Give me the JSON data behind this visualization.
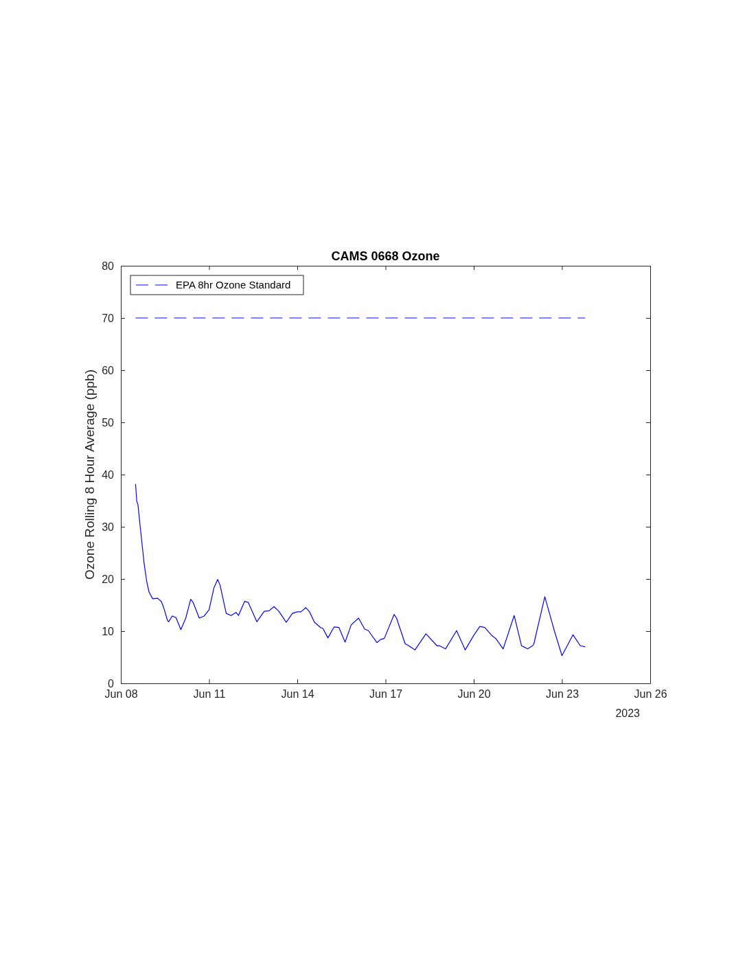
{
  "chart_data": {
    "type": "line",
    "title": "CAMS 0668 Ozone",
    "ylabel": "Ozone Rolling 8 Hour Average (ppb)",
    "annotations": [
      "2023"
    ],
    "xlim": [
      "2023-06-08",
      "2023-06-26"
    ],
    "xticks": [
      {
        "value": "2023-06-08",
        "label": "Jun 08"
      },
      {
        "value": "2023-06-11",
        "label": "Jun 11"
      },
      {
        "value": "2023-06-14",
        "label": "Jun 14"
      },
      {
        "value": "2023-06-17",
        "label": "Jun 17"
      },
      {
        "value": "2023-06-20",
        "label": "Jun 20"
      },
      {
        "value": "2023-06-23",
        "label": "Jun 23"
      },
      {
        "value": "2023-06-26",
        "label": "Jun 26"
      }
    ],
    "ylim": [
      0,
      80
    ],
    "yticks": [
      0,
      10,
      20,
      30,
      40,
      50,
      60,
      70,
      80
    ],
    "grid": false,
    "legend": "top left",
    "series": [
      {
        "name": "EPA 8hr Ozone Standard",
        "color": "#0000ff",
        "line_style": "dashed",
        "x": [
          "2023-06-08T12:00",
          "2023-06-23T19:00"
        ],
        "values": [
          70,
          70
        ]
      },
      {
        "color": "#0000ff",
        "x": [
          "2023-06-08T12:00",
          "2023-06-08T13:00",
          "2023-06-08T14:00",
          "2023-06-08T16:00",
          "2023-06-08T19:00",
          "2023-06-08T21:00",
          "2023-06-08T23:00",
          "2023-06-09T02:00",
          "2023-06-09T06:00",
          "2023-06-09T09:00",
          "2023-06-09T11:00",
          "2023-06-09T14:00",
          "2023-06-09T15:00",
          "2023-06-09T18:00",
          "2023-06-09T21:00",
          "2023-06-10T01:00",
          "2023-06-10T05:00",
          "2023-06-10T09:00",
          "2023-06-10T11:00",
          "2023-06-10T16:00",
          "2023-06-10T20:00",
          "2023-06-11T00:00",
          "2023-06-11T04:00",
          "2023-06-11T07:00",
          "2023-06-11T09:00",
          "2023-06-11T14:00",
          "2023-06-11T18:00",
          "2023-06-11T22:00",
          "2023-06-12T00:00",
          "2023-06-12T05:00",
          "2023-06-12T08:00",
          "2023-06-12T15:00",
          "2023-06-12T21:00",
          "2023-06-13T01:00",
          "2023-06-13T05:00",
          "2023-06-13T09:00",
          "2023-06-13T15:00",
          "2023-06-13T20:00",
          "2023-06-14T00:00",
          "2023-06-14T03:00",
          "2023-06-14T07:00",
          "2023-06-14T10:00",
          "2023-06-14T14:00",
          "2023-06-14T19:00",
          "2023-06-14T21:00",
          "2023-06-15T01:00",
          "2023-06-15T06:00",
          "2023-06-15T10:00",
          "2023-06-15T15:00",
          "2023-06-15T20:00",
          "2023-06-16T02:00",
          "2023-06-16T07:00",
          "2023-06-16T10:00",
          "2023-06-16T17:00",
          "2023-06-16T20:00",
          "2023-06-16T23:00",
          "2023-06-17T07:00",
          "2023-06-17T09:00",
          "2023-06-17T16:00",
          "2023-06-17T19:00",
          "2023-06-18T00:00",
          "2023-06-18T09:00",
          "2023-06-18T18:00",
          "2023-06-18T20:00",
          "2023-06-19T01:00",
          "2023-06-19T10:00",
          "2023-06-19T17:00",
          "2023-06-20T00:00",
          "2023-06-20T05:00",
          "2023-06-20T09:00",
          "2023-06-20T15:00",
          "2023-06-20T18:00",
          "2023-06-21T00:00",
          "2023-06-21T09:00",
          "2023-06-21T15:00",
          "2023-06-21T20:00",
          "2023-06-22T00:00",
          "2023-06-22T01:00",
          "2023-06-22T10:00",
          "2023-06-22T18:00",
          "2023-06-23T00:00",
          "2023-06-23T09:00",
          "2023-06-23T15:00",
          "2023-06-23T19:00"
        ],
        "values": [
          38.2,
          34.9,
          34.2,
          29.6,
          23,
          19.7,
          17.5,
          16.2,
          16.3,
          15.7,
          14.5,
          12.1,
          11.8,
          12.9,
          12.6,
          10.3,
          12.5,
          16.1,
          15.5,
          12.5,
          12.9,
          14.1,
          18.3,
          19.9,
          18.8,
          13.4,
          13,
          13.6,
          13,
          15.7,
          15.5,
          11.8,
          13.8,
          13.9,
          14.7,
          13.8,
          11.7,
          13.4,
          13.7,
          13.7,
          14.5,
          13.7,
          11.7,
          10.7,
          10.5,
          8.7,
          10.8,
          10.7,
          7.9,
          11.2,
          12.5,
          10.4,
          10.1,
          7.8,
          8.4,
          8.6,
          13.2,
          12.5,
          7.6,
          7.2,
          6.4,
          9.5,
          7.2,
          7.2,
          6.6,
          10.1,
          6.4,
          9.2,
          10.9,
          10.7,
          9.1,
          8.6,
          6.6,
          13,
          7.2,
          6.6,
          7.2,
          7.5,
          16.6,
          9.9,
          5.3,
          9.3,
          7.2,
          7
        ]
      }
    ]
  }
}
